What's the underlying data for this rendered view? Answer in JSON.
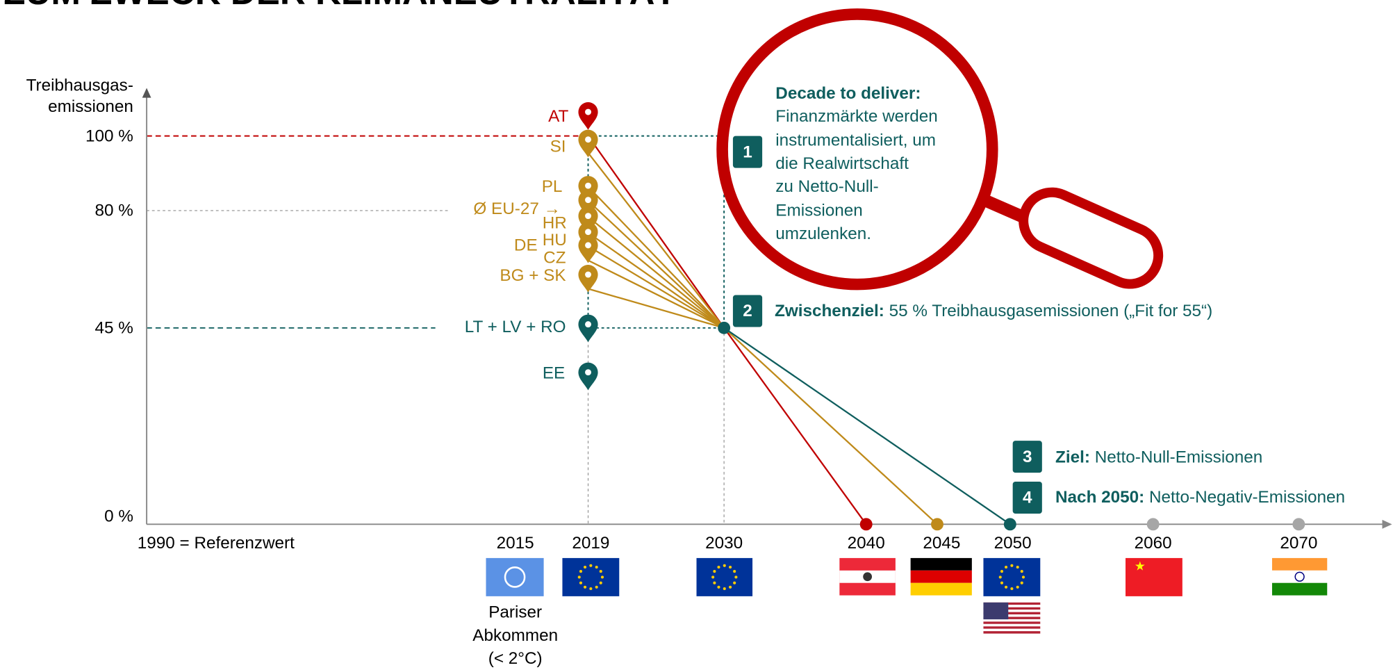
{
  "title": "ZUM ZWECK DER KLIMANEUTRALITÄT",
  "y_axis": {
    "label_lines": [
      "Treibhausgas-",
      "emissionen"
    ],
    "ticks": [
      "100 %",
      "80 %",
      "45 %",
      "0 %"
    ]
  },
  "x_axis": {
    "baseline_label": "1990 = Referenzwert",
    "years": [
      "2015",
      "2019",
      "2030",
      "2040",
      "2045",
      "2050",
      "2060",
      "2070"
    ]
  },
  "countries": [
    "AT",
    "SI",
    "PL",
    "Ø EU-27 →",
    "HR",
    "HU",
    "DE",
    "CZ",
    "BG + SK",
    "LT + LV + RO",
    "EE"
  ],
  "callout": {
    "heading": "Decade to deliver:",
    "lines": [
      "Finanzmärkte werden",
      "instrumentalisiert, um",
      "die Realwirtschaft",
      "zu Netto-Null-",
      "Emissionen",
      "umzulenken."
    ]
  },
  "milestones": [
    {
      "number": "1"
    },
    {
      "number": "2",
      "heading": "Zwischenziel:",
      "text": "55 % Treibhausgasemissionen („Fit for 55“)"
    },
    {
      "number": "3",
      "heading": "Ziel:",
      "text": "Netto-Null-Emissionen"
    },
    {
      "number": "4",
      "heading": "Nach 2050:",
      "text": "Netto-Negativ-Emissionen"
    }
  ],
  "paris_caption": [
    "Pariser",
    "Abkommen",
    "(< 2°C)"
  ]
}
